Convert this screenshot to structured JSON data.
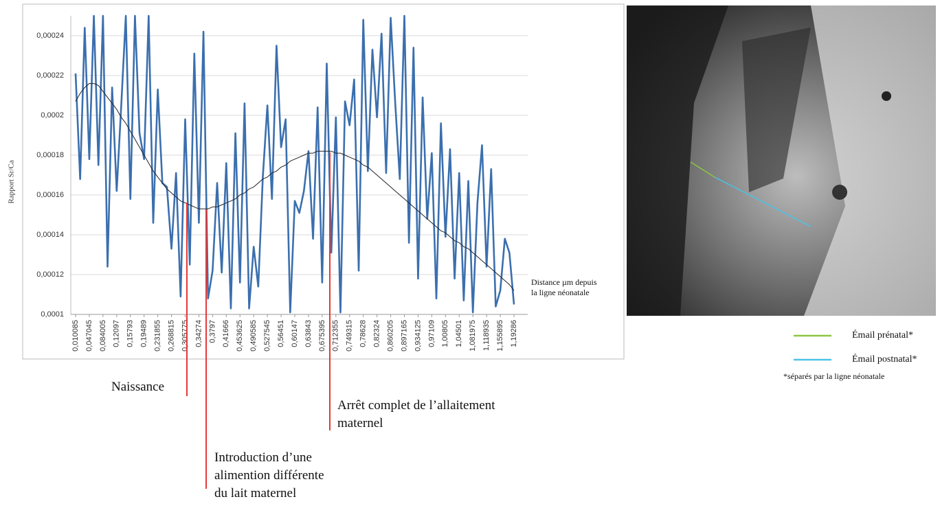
{
  "chart_data": {
    "type": "line",
    "ylabel": "Rapport Sr/Ca",
    "xlabel": "Distance µm depuis la ligne néonatale",
    "categories": [
      "0,010085",
      null,
      null,
      "0,047045",
      null,
      null,
      "0,084005",
      null,
      null,
      "0,12097",
      null,
      null,
      "0,15793",
      null,
      null,
      "0,19489",
      null,
      null,
      "0,231855",
      null,
      null,
      "0,268815",
      null,
      null,
      "0,305775",
      null,
      null,
      "0,34274",
      null,
      null,
      "0,3797",
      null,
      null,
      "0,41666",
      null,
      null,
      "0,453625",
      null,
      null,
      "0,490585",
      null,
      null,
      "0,527545",
      null,
      null,
      "0,56451",
      null,
      null,
      "0,60147",
      null,
      null,
      "0,63843",
      null,
      null,
      "0,675395",
      null,
      null,
      "0,712355",
      null,
      null,
      "0,749315",
      null,
      null,
      "0,78628",
      null,
      null,
      "0,82324",
      null,
      null,
      "0,860205",
      null,
      null,
      "0,897165",
      null,
      null,
      "0,934125",
      null,
      null,
      "0,97109",
      null,
      null,
      "1,00805",
      null,
      null,
      "1,04501",
      null,
      null,
      "1,081975",
      null,
      null,
      "1,118935",
      null,
      null,
      "1,155895",
      null,
      null,
      "1,19286"
    ],
    "series": [
      {
        "color": "#3b6fae",
        "values": [
          0.000221,
          0.000168,
          0.000244,
          0.000178,
          0.00025,
          0.000175,
          0.00025,
          0.000124,
          0.000214,
          0.000162,
          0.000205,
          0.00025,
          0.000158,
          0.00025,
          0.000191,
          0.000178,
          0.00025,
          0.000146,
          0.000213,
          0.000166,
          0.000164,
          0.000133,
          0.000171,
          0.000109,
          0.000198,
          0.000125,
          0.000231,
          0.000146,
          0.000242,
          0.000108,
          0.000122,
          0.000166,
          0.000121,
          0.000176,
          0.000103,
          0.000191,
          0.000116,
          0.000206,
          0.000103,
          0.000134,
          0.000114,
          0.000169,
          0.000205,
          0.000158,
          0.000235,
          0.000184,
          0.000198,
          0.000101,
          0.000157,
          0.000151,
          0.000162,
          0.000182,
          0.000138,
          0.000204,
          0.000116,
          0.000226,
          0.000131,
          0.000199,
          0.000101,
          0.000207,
          0.000195,
          0.000218,
          0.000122,
          0.000248,
          0.000172,
          0.000233,
          0.000199,
          0.000241,
          0.000171,
          0.000249,
          0.000206,
          0.000168,
          0.00025,
          0.000136,
          0.000234,
          0.000118,
          0.000209,
          0.000148,
          0.000181,
          0.000108,
          0.000196,
          0.000139,
          0.000183,
          0.000118,
          0.000171,
          0.000107,
          0.000167,
          0.000101,
          0.000156,
          0.000185,
          0.000124,
          0.000173,
          0.000104,
          0.000112,
          0.000138,
          0.000131,
          0.000105
        ]
      },
      {
        "color": "#222222",
        "values": [
          0.000207,
          0.000211,
          0.000214,
          0.000216,
          0.000216,
          0.000215,
          0.000212,
          0.000209,
          0.000206,
          0.000203,
          0.000199,
          0.000196,
          0.000192,
          0.000188,
          0.000184,
          0.00018,
          0.000176,
          0.000172,
          0.000169,
          0.000166,
          0.000163,
          0.000161,
          0.000159,
          0.000157,
          0.000156,
          0.000155,
          0.000154,
          0.000153,
          0.000153,
          0.000153,
          0.000154,
          0.000154,
          0.000155,
          0.000156,
          0.000157,
          0.000158,
          0.00016,
          0.000161,
          0.000163,
          0.000164,
          0.000166,
          0.000168,
          0.000169,
          0.000171,
          0.000172,
          0.000174,
          0.000175,
          0.000177,
          0.000178,
          0.000179,
          0.00018,
          0.000181,
          0.000181,
          0.000182,
          0.000182,
          0.000182,
          0.000182,
          0.000181,
          0.000181,
          0.00018,
          0.000179,
          0.000178,
          0.000177,
          0.000175,
          0.000174,
          0.000172,
          0.00017,
          0.000168,
          0.000166,
          0.000164,
          0.000162,
          0.00016,
          0.000158,
          0.000156,
          0.000154,
          0.000152,
          0.00015,
          0.000148,
          0.000146,
          0.000144,
          0.000142,
          0.000141,
          0.000139,
          0.000137,
          0.000136,
          0.000134,
          0.000133,
          0.000131,
          0.000129,
          0.000127,
          0.000125,
          0.000123,
          0.000121,
          0.000119,
          0.000117,
          0.000115,
          0.000112
        ]
      }
    ],
    "ylim": [
      0.0001,
      0.00025
    ],
    "yticks": [
      {
        "value": 0.0001,
        "label": "0,0001"
      },
      {
        "value": 0.00012,
        "label": "0,00012"
      },
      {
        "value": 0.00014,
        "label": "0,00014"
      },
      {
        "value": 0.00016,
        "label": "0,00016"
      },
      {
        "value": 0.00018,
        "label": "0,00018"
      },
      {
        "value": 0.0002,
        "label": "0,0002"
      },
      {
        "value": 0.00022,
        "label": "0,00022"
      },
      {
        "value": 0.00024,
        "label": "0,00024"
      }
    ],
    "grid": true,
    "annotations": [
      "Naissance",
      "Introduction d’une alimention différente du lait maternel",
      "Arrêt complet de l’allaitement maternel"
    ],
    "image_legend": {
      "items": [
        {
          "name": "Émail prénatal*",
          "color": "#8cc63f"
        },
        {
          "name": "Émail postnatal*",
          "color": "#4cc3e6"
        }
      ],
      "note": "*séparés par la ligne néonatale"
    }
  }
}
